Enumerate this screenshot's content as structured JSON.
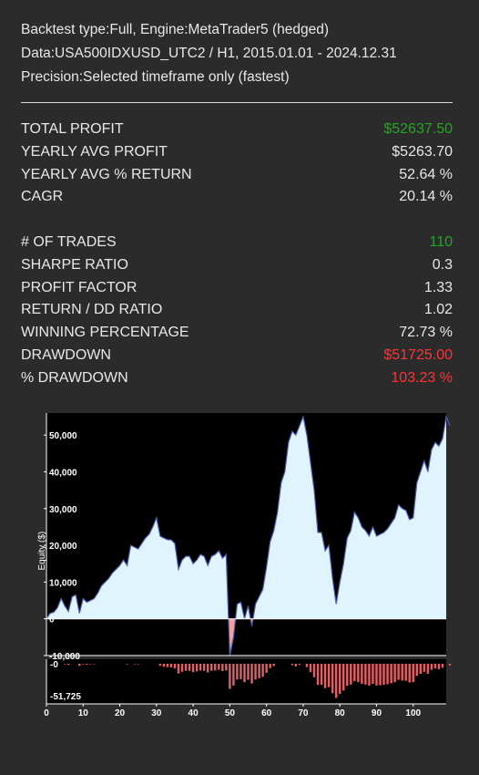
{
  "header": {
    "line1": "Backtest type:Full, Engine:MetaTrader5 (hedged)",
    "line2": "Data:USA500IDXUSD_UTC2 / H1, 2015.01.01 - 2024.12.31",
    "line3": "Precision:Selected timeframe only (fastest)"
  },
  "stats": [
    {
      "label": "TOTAL PROFIT",
      "value": "$52637.50",
      "color": "#22a722"
    },
    {
      "label": "YEARLY AVG PROFIT",
      "value": "$5263.70",
      "color": "#e8e8e8"
    },
    {
      "label": "YEARLY AVG % RETURN",
      "value": "52.64 %",
      "color": "#e8e8e8"
    },
    {
      "label": "CAGR",
      "value": "20.14 %",
      "color": "#e8e8e8"
    },
    {
      "label": "# OF TRADES",
      "value": "110",
      "color": "#22a722"
    },
    {
      "label": "SHARPE RATIO",
      "value": "0.3",
      "color": "#e8e8e8"
    },
    {
      "label": "PROFIT FACTOR",
      "value": "1.33",
      "color": "#e8e8e8"
    },
    {
      "label": "RETURN / DD RATIO",
      "value": "1.02",
      "color": "#e8e8e8"
    },
    {
      "label": "WINNING PERCENTAGE",
      "value": "72.73 %",
      "color": "#e8e8e8"
    },
    {
      "label": "DRAWDOWN",
      "value": "$51725.00",
      "color": "#ff3333"
    },
    {
      "label": "% DRAWDOWN",
      "value": "103.23 %",
      "color": "#ff3333"
    }
  ],
  "chart_data": {
    "type": "area",
    "ylabel": "Equity ($)",
    "xlim": [
      0,
      109
    ],
    "ylim": [
      -10000,
      56000
    ],
    "x_ticks": [
      0,
      10,
      20,
      30,
      40,
      50,
      60,
      70,
      80,
      90,
      100
    ],
    "y_ticks": [
      -10000,
      0,
      10000,
      20000,
      30000,
      40000,
      50000
    ],
    "y_tick_labels": [
      "-10,000",
      "0",
      "10,000",
      "20,000",
      "30,000",
      "40,000",
      "50,000"
    ],
    "equity": [
      0,
      1500,
      1800,
      3000,
      5500,
      3500,
      2000,
      6000,
      6500,
      1500,
      5500,
      4500,
      5000,
      5500,
      7000,
      9000,
      10000,
      11000,
      12500,
      13500,
      14500,
      16000,
      14500,
      20000,
      19500,
      19000,
      20500,
      22000,
      23000,
      25000,
      27500,
      22500,
      22000,
      21500,
      21500,
      20500,
      13500,
      16000,
      17000,
      17000,
      15000,
      16000,
      17500,
      17000,
      14500,
      17000,
      17500,
      18500,
      16500,
      17500,
      -10000,
      -5000,
      4000,
      4500,
      0,
      3500,
      -2000,
      4000,
      6000,
      8000,
      14000,
      21000,
      24000,
      29000,
      37000,
      40000,
      48000,
      51000,
      50000,
      52500,
      55000,
      50000,
      42500,
      35000,
      23500,
      23500,
      18500,
      20000,
      11000,
      4000,
      10000,
      15000,
      22000,
      24000,
      29000,
      27500,
      25000,
      24000,
      22500,
      25000,
      22500,
      23000,
      23500,
      24500,
      26000,
      27500,
      31000,
      30000,
      29500,
      27000,
      27500,
      37000,
      40000,
      43000,
      40000,
      46000,
      48000,
      47000,
      49000,
      55000,
      52600
    ],
    "drawdown_ylim": [
      -51725,
      0
    ],
    "drawdown_tick_labels": [
      "-0",
      "-51,725"
    ],
    "drawdown": [
      0,
      0,
      0,
      0,
      0,
      -800,
      -1500,
      0,
      0,
      -3000,
      -800,
      -1200,
      -700,
      -500,
      0,
      0,
      0,
      0,
      0,
      0,
      0,
      0,
      -800,
      0,
      -300,
      -700,
      0,
      0,
      0,
      0,
      0,
      -3000,
      -4500,
      -5000,
      -5500,
      -7000,
      -14500,
      -12000,
      -10500,
      -10500,
      -12500,
      -11500,
      -10000,
      -10500,
      -13000,
      -10500,
      -10000,
      -9000,
      -11000,
      -10000,
      -37500,
      -32500,
      -23500,
      -23000,
      -27500,
      -24000,
      -29500,
      -23500,
      -21500,
      -19500,
      -13500,
      -6500,
      -3500,
      0,
      0,
      0,
      0,
      -2000,
      -4000,
      -1500,
      0,
      -5000,
      -12500,
      -20000,
      -31500,
      -31500,
      -36500,
      -35000,
      -44000,
      -51000,
      -45000,
      -40000,
      -33000,
      -31000,
      -26000,
      -27500,
      -30000,
      -31000,
      -32500,
      -30000,
      -32500,
      -32000,
      -31500,
      -30500,
      -29000,
      -27500,
      -24000,
      -25000,
      -25500,
      -28000,
      -27500,
      -18000,
      -15000,
      -12000,
      -15000,
      -9000,
      -7000,
      -8000,
      -6000,
      0,
      -2400
    ]
  },
  "colors": {
    "background": "#2b2b2b",
    "plot_background": "#000000",
    "equity_fill": "#e0f4ff",
    "equity_line": "#4a5fb0",
    "negative_fill": "#f4a0a4",
    "drawdown_bars": "#e26065",
    "profit_green": "#22a722",
    "loss_red": "#ff3333"
  }
}
